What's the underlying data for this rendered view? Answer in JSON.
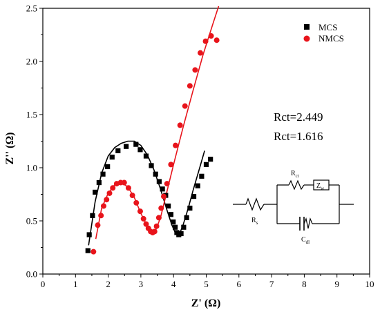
{
  "chart_data": {
    "type": "scatter",
    "xlabel": "Z' (Ω)",
    "ylabel": "Z'' (Ω)",
    "xlim": [
      0,
      10
    ],
    "ylim": [
      0.0,
      2.5
    ],
    "x_ticks": [
      "0",
      "1",
      "2",
      "3",
      "4",
      "5",
      "6",
      "7",
      "8",
      "9",
      "10"
    ],
    "y_ticks": [
      "0.0",
      "0.5",
      "1.0",
      "1.5",
      "2.0",
      "2.5"
    ],
    "grid": false,
    "legend_position": "top-right",
    "series": [
      {
        "name": "MCS",
        "marker": "square",
        "color": "#000000",
        "x": [
          1.38,
          1.42,
          1.52,
          1.6,
          1.72,
          1.84,
          1.98,
          2.12,
          2.3,
          2.55,
          2.85,
          2.98,
          3.16,
          3.32,
          3.45,
          3.56,
          3.66,
          3.76,
          3.84,
          3.92,
          3.99,
          4.05,
          4.1,
          4.16,
          4.23,
          4.31,
          4.4,
          4.5,
          4.62,
          4.74,
          4.86,
          5.0,
          5.13
        ],
        "y": [
          0.22,
          0.37,
          0.55,
          0.77,
          0.86,
          0.94,
          1.01,
          1.1,
          1.16,
          1.2,
          1.22,
          1.17,
          1.11,
          1.02,
          0.94,
          0.87,
          0.8,
          0.74,
          0.64,
          0.56,
          0.49,
          0.44,
          0.39,
          0.37,
          0.38,
          0.44,
          0.53,
          0.62,
          0.73,
          0.83,
          0.92,
          1.03,
          1.08
        ],
        "fit_x": [
          1.4,
          1.6,
          1.8,
          2.0,
          2.2,
          2.4,
          2.6,
          2.8,
          3.0,
          3.2,
          3.4,
          3.6,
          3.8,
          3.95,
          4.05,
          4.12,
          4.2,
          4.3,
          4.45,
          4.6,
          4.8,
          4.95
        ],
        "fit_y": [
          0.27,
          0.68,
          0.95,
          1.11,
          1.19,
          1.23,
          1.25,
          1.25,
          1.21,
          1.12,
          0.98,
          0.8,
          0.6,
          0.46,
          0.39,
          0.37,
          0.39,
          0.47,
          0.62,
          0.79,
          1.0,
          1.16
        ]
      },
      {
        "name": "NMCS",
        "marker": "circle",
        "color": "#e8141b",
        "x": [
          1.55,
          1.68,
          1.78,
          1.86,
          1.95,
          2.04,
          2.14,
          2.26,
          2.38,
          2.49,
          2.62,
          2.74,
          2.86,
          2.98,
          3.08,
          3.16,
          3.23,
          3.3,
          3.36,
          3.42,
          3.48,
          3.55,
          3.62,
          3.7,
          3.8,
          3.92,
          4.06,
          4.2,
          4.35,
          4.5,
          4.66,
          4.82,
          4.98,
          5.15,
          5.32
        ],
        "y": [
          0.21,
          0.46,
          0.55,
          0.64,
          0.7,
          0.76,
          0.81,
          0.85,
          0.86,
          0.86,
          0.81,
          0.74,
          0.67,
          0.59,
          0.52,
          0.47,
          0.43,
          0.4,
          0.39,
          0.4,
          0.45,
          0.53,
          0.62,
          0.73,
          0.85,
          1.03,
          1.21,
          1.4,
          1.58,
          1.77,
          1.92,
          2.08,
          2.19,
          2.24,
          2.2
        ],
        "fit_x": [
          1.62,
          1.8,
          2.0,
          2.2,
          2.4,
          2.6,
          2.8,
          3.0,
          3.2,
          3.35,
          3.45,
          3.6,
          3.8,
          4.0,
          4.3,
          4.6,
          4.9,
          5.2,
          5.38
        ],
        "fit_y": [
          0.33,
          0.62,
          0.76,
          0.84,
          0.86,
          0.82,
          0.72,
          0.57,
          0.45,
          0.4,
          0.41,
          0.53,
          0.78,
          1.03,
          1.39,
          1.73,
          2.06,
          2.35,
          2.52
        ]
      }
    ],
    "annotations": [
      "Rct=2.449",
      "Rct=1.616"
    ]
  },
  "circuit": {
    "rs_label": "R",
    "rs_sub": "s",
    "rct_label": "R",
    "rct_sub": "ct",
    "zw_label": "Z",
    "zw_sub": "w",
    "cdl_label": "C",
    "cdl_sub": "dl"
  }
}
